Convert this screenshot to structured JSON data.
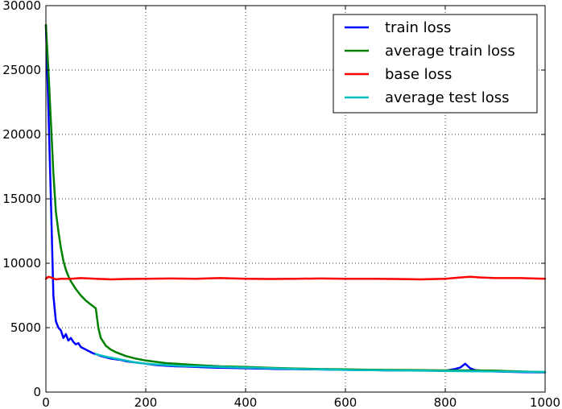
{
  "chart_data": {
    "type": "line",
    "title": "",
    "xlabel": "",
    "ylabel": "",
    "xlim": [
      0,
      1000
    ],
    "ylim": [
      0,
      30000
    ],
    "xticks": [
      0,
      200,
      400,
      600,
      800,
      1000
    ],
    "xtick_labels": [
      "0",
      "200",
      "400",
      "600",
      "800",
      "1000"
    ],
    "yticks": [
      0,
      5000,
      10000,
      15000,
      20000,
      25000,
      30000
    ],
    "ytick_labels": [
      "0",
      "5000",
      "10000",
      "15000",
      "20000",
      "25000",
      "30000"
    ],
    "grid": true,
    "legend_position": "top-right",
    "series": [
      {
        "name": "train loss",
        "color": "#0000ff",
        "x": [
          0,
          5,
          10,
          15,
          20,
          25,
          30,
          35,
          40,
          45,
          50,
          55,
          60,
          65,
          70,
          75,
          80,
          85,
          90,
          95,
          100,
          110,
          120,
          130,
          140,
          150,
          160,
          170,
          180,
          200,
          220,
          240,
          260,
          280,
          300,
          320,
          340,
          360,
          380,
          400,
          420,
          440,
          460,
          480,
          500,
          520,
          540,
          560,
          580,
          600,
          620,
          640,
          660,
          680,
          700,
          720,
          740,
          760,
          780,
          800,
          820,
          830,
          840,
          850,
          860,
          880,
          900,
          920,
          940,
          960,
          980,
          1000
        ],
        "y": [
          28500,
          22000,
          15000,
          7500,
          5500,
          5000,
          4800,
          4200,
          4500,
          4000,
          4200,
          3900,
          3700,
          3800,
          3500,
          3400,
          3300,
          3200,
          3100,
          3000,
          2950,
          2800,
          2700,
          2600,
          2550,
          2500,
          2400,
          2350,
          2300,
          2200,
          2100,
          2050,
          2000,
          1980,
          1950,
          1920,
          1900,
          1880,
          1870,
          1850,
          1830,
          1820,
          1800,
          1790,
          1780,
          1770,
          1760,
          1750,
          1740,
          1730,
          1720,
          1710,
          1700,
          1690,
          1680,
          1680,
          1670,
          1670,
          1660,
          1650,
          1800,
          1900,
          2200,
          1850,
          1700,
          1650,
          1600,
          1580,
          1560,
          1550,
          1540,
          1530
        ]
      },
      {
        "name": "average train loss",
        "color": "#008000",
        "x": [
          0,
          5,
          10,
          15,
          20,
          25,
          30,
          35,
          40,
          45,
          50,
          55,
          60,
          70,
          80,
          90,
          100,
          105,
          110,
          120,
          130,
          140,
          150,
          160,
          180,
          200,
          220,
          240,
          260,
          300,
          350,
          400,
          450,
          500,
          550,
          600,
          650,
          700,
          750,
          800,
          850,
          900,
          950,
          1000
        ],
        "y": [
          28500,
          25000,
          21000,
          17000,
          14000,
          12500,
          11200,
          10200,
          9500,
          9000,
          8600,
          8300,
          8000,
          7500,
          7100,
          6800,
          6500,
          5000,
          4200,
          3600,
          3300,
          3100,
          2950,
          2800,
          2600,
          2450,
          2350,
          2250,
          2200,
          2100,
          2000,
          1950,
          1880,
          1830,
          1790,
          1760,
          1740,
          1720,
          1700,
          1690,
          1680,
          1660,
          1600,
          1550
        ]
      },
      {
        "name": "base loss",
        "color": "#ff0000",
        "x": [
          0,
          5,
          10,
          20,
          30,
          50,
          70,
          100,
          130,
          160,
          200,
          250,
          300,
          350,
          400,
          450,
          500,
          550,
          600,
          650,
          700,
          750,
          800,
          830,
          850,
          870,
          900,
          950,
          1000
        ],
        "y": [
          8800,
          8950,
          8900,
          8750,
          8800,
          8800,
          8850,
          8800,
          8750,
          8780,
          8800,
          8820,
          8800,
          8850,
          8800,
          8780,
          8800,
          8820,
          8800,
          8800,
          8780,
          8750,
          8800,
          8900,
          8950,
          8900,
          8850,
          8850,
          8800
        ]
      },
      {
        "name": "average test loss",
        "color": "#00bfbf",
        "x": [
          100,
          120,
          140,
          160,
          180,
          200,
          220,
          240,
          260,
          300,
          350,
          400,
          450,
          500,
          550,
          600,
          650,
          700,
          750,
          800,
          850,
          900,
          950,
          1000
        ],
        "y": [
          2950,
          2750,
          2600,
          2450,
          2300,
          2200,
          2150,
          2100,
          2050,
          2000,
          1950,
          1900,
          1850,
          1800,
          1760,
          1720,
          1700,
          1680,
          1660,
          1640,
          1620,
          1600,
          1580,
          1560
        ]
      }
    ]
  }
}
